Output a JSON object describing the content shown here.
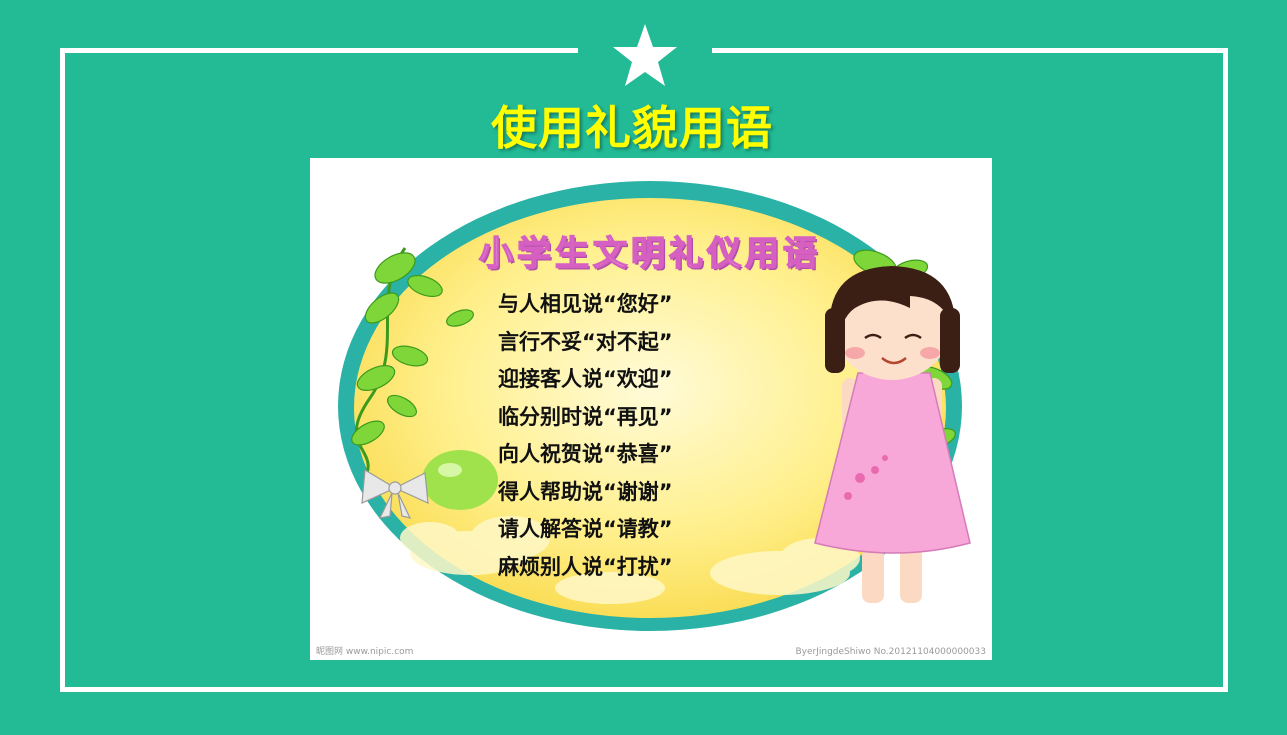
{
  "slide": {
    "title": "使用礼貌用语",
    "colors": {
      "background": "#22bb96",
      "frame": "#ffffff",
      "title": "#ffff00"
    },
    "star_icon": "star-icon"
  },
  "poster": {
    "title": "小学生文明礼仪用语",
    "phrases": [
      "与人相见说“您好”",
      "言行不妥“对不起”",
      "迎接客人说“欢迎”",
      "临分别时说“再见”",
      "向人祝贺说“恭喜”",
      "得人帮助说“谢谢”",
      "请人解答说“请教”",
      "麻烦别人说“打扰”"
    ],
    "watermark_left": "昵图网 www.nipic.com",
    "watermark_right": "ByerJingdeShiwo No.20121104000000033",
    "colors": {
      "ring": "#2bb2a6",
      "fill": "#ffe66a",
      "dress": "#f7a8d8",
      "leaves": "#7fd638"
    }
  }
}
